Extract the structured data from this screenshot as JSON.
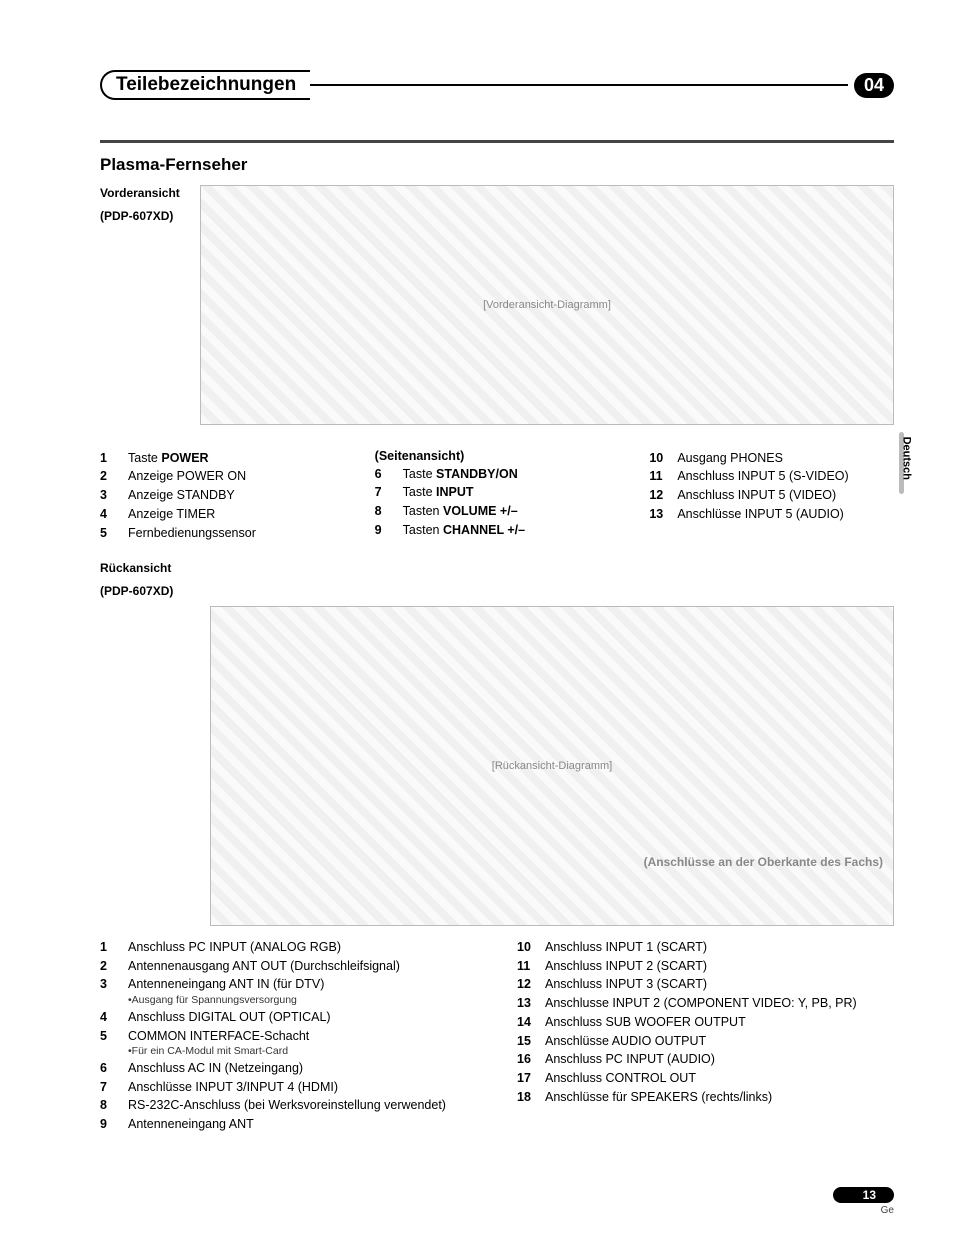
{
  "header": {
    "title": "Teilebezeichnungen",
    "chapter": "04"
  },
  "section_title": "Plasma-Fernseher",
  "front": {
    "label_line1": "Vorderansicht",
    "label_line2": "(PDP-607XD)",
    "diagram_alt": "[Vorderansicht-Diagramm]",
    "col1": [
      {
        "n": "1",
        "t": "Taste ",
        "b": "POWER"
      },
      {
        "n": "2",
        "t": "Anzeige POWER ON"
      },
      {
        "n": "3",
        "t": "Anzeige STANDBY"
      },
      {
        "n": "4",
        "t": "Anzeige TIMER"
      },
      {
        "n": "5",
        "t": "Fernbedienungssensor"
      }
    ],
    "col2_head": "(Seitenansicht)",
    "col2": [
      {
        "n": "6",
        "t": "Taste ",
        "b": "STANDBY/ON"
      },
      {
        "n": "7",
        "t": "Taste ",
        "b": "INPUT"
      },
      {
        "n": "8",
        "t": "Tasten ",
        "b": "VOLUME +/–"
      },
      {
        "n": "9",
        "t": "Tasten ",
        "b": "CHANNEL +/–"
      }
    ],
    "col3": [
      {
        "n": "10",
        "t": "Ausgang PHONES"
      },
      {
        "n": "11",
        "t": "Anschluss INPUT 5 (S-VIDEO)"
      },
      {
        "n": "12",
        "t": "Anschluss INPUT 5 (VIDEO)"
      },
      {
        "n": "13",
        "t": "Anschlüsse INPUT 5 (AUDIO)"
      }
    ]
  },
  "rear": {
    "label_line1": "Rückansicht",
    "label_line2": "(PDP-607XD)",
    "diagram_alt": "[Rückansicht-Diagramm]",
    "caption": "(Anschlüsse an der Oberkante des Fachs)",
    "left": [
      {
        "n": "1",
        "t": "Anschluss PC INPUT (ANALOG RGB)"
      },
      {
        "n": "2",
        "t": "Antennenausgang ANT OUT (Durchschleifsignal)"
      },
      {
        "n": "3",
        "t": "Antenneneingang ANT IN (für DTV)",
        "note": "•Ausgang für Spannungsversorgung"
      },
      {
        "n": "4",
        "t": "Anschluss DIGITAL OUT (OPTICAL)"
      },
      {
        "n": "5",
        "t": "COMMON INTERFACE-Schacht",
        "note": "•Für ein CA-Modul mit Smart-Card"
      },
      {
        "n": "6",
        "t": "Anschluss AC IN (Netzeingang)"
      },
      {
        "n": "7",
        "t": "Anschlüsse INPUT 3/INPUT 4 (HDMI)"
      },
      {
        "n": "8",
        "t": "RS-232C-Anschluss (bei Werksvoreinstellung verwendet)"
      },
      {
        "n": "9",
        "t": "Antenneneingang ANT"
      }
    ],
    "right": [
      {
        "n": "10",
        "t": "Anschluss INPUT 1 (SCART)"
      },
      {
        "n": "11",
        "t": "Anschluss INPUT 2 (SCART)"
      },
      {
        "n": "12",
        "t": "Anschluss INPUT 3 (SCART)"
      },
      {
        "n": "13",
        "t": "Anschlusse INPUT 2 (COMPONENT VIDEO: Y, PB, PR)"
      },
      {
        "n": "14",
        "t": "Anschluss SUB WOOFER OUTPUT"
      },
      {
        "n": "15",
        "t": "Anschlüsse AUDIO OUTPUT"
      },
      {
        "n": "16",
        "t": "Anschluss PC INPUT (AUDIO)"
      },
      {
        "n": "17",
        "t": "Anschluss CONTROL OUT"
      },
      {
        "n": "18",
        "t": "Anschlüsse für SPEAKERS (rechts/links)"
      }
    ]
  },
  "side_lang": "Deutsch",
  "footer": {
    "page": "13",
    "lang": "Ge"
  }
}
